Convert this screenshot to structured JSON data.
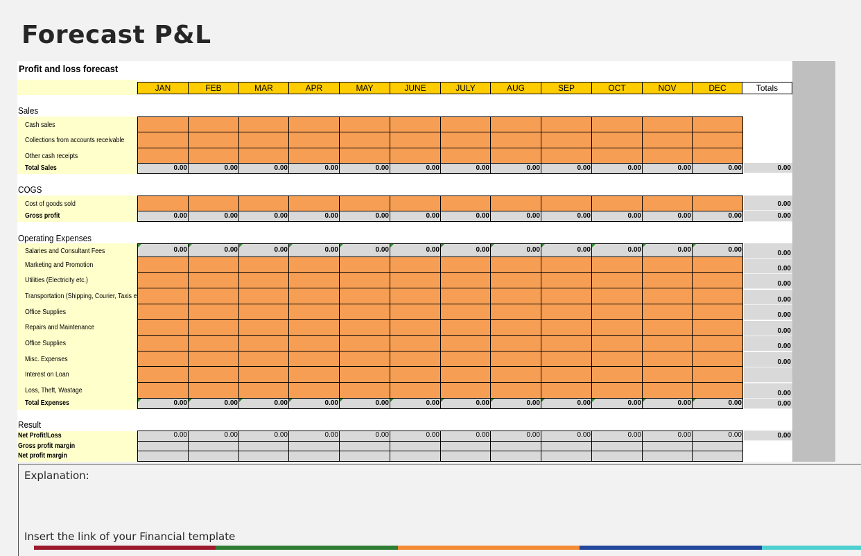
{
  "page_title": "Forecast P&L",
  "sheet": {
    "title": "Profit and loss forecast",
    "months": [
      "JAN",
      "FEB",
      "MAR",
      "APR",
      "MAY",
      "JUNE",
      "JULY",
      "AUG",
      "SEP",
      "OCT",
      "NOV",
      "DEC"
    ],
    "totals_label": "Totals",
    "sections": {
      "sales": {
        "title": "Sales",
        "items": [
          "Cash sales",
          "Collections from accounts receivable",
          "Other cash receipts"
        ],
        "total_label": "Total Sales",
        "monthly_totals": [
          "0.00",
          "0.00",
          "0.00",
          "0.00",
          "0.00",
          "0.00",
          "0.00",
          "0.00",
          "0.00",
          "0.00",
          "0.00",
          "0.00"
        ],
        "grand_total": "0.00"
      },
      "cogs": {
        "title": "COGS",
        "item": "Cost of goods sold",
        "item_total": "0.00",
        "gross_label": "Gross profit",
        "gross_monthly": [
          "0.00",
          "0.00",
          "0.00",
          "0.00",
          "0.00",
          "0.00",
          "0.00",
          "0.00",
          "0.00",
          "0.00",
          "0.00",
          "0.00"
        ],
        "gross_total": "0.00"
      },
      "opex": {
        "title": "Operating Expenses",
        "salaries_label": "Salaries and Consultant Fees",
        "salaries_monthly": [
          "0.00",
          "0.00",
          "0.00",
          "0.00",
          "0.00",
          "0.00",
          "0.00",
          "0.00",
          "0.00",
          "0.00",
          "0.00",
          "0.00"
        ],
        "items": [
          "Marketing and Promotion",
          "Utilities (Electricity etc.)",
          "Transportation (Shipping, Courier, Taxis etc.)",
          "Office Supplies",
          "Repairs and Maintenance",
          "Office Supplies",
          "Misc. Expenses",
          "Interest on Loan",
          "Loss, Theft, Wastage"
        ],
        "row_totals": [
          "0.00",
          "0.00",
          "0.00",
          "0.00",
          "0.00",
          "0.00",
          "0.00",
          "0.00",
          "",
          "0.00"
        ],
        "total_label": "Total Expenses",
        "total_monthly": [
          "0.00",
          "0.00",
          "0.00",
          "0.00",
          "0.00",
          "0.00",
          "0.00",
          "0.00",
          "0.00",
          "0.00",
          "0.00",
          "0.00"
        ],
        "grand_total": "0.00"
      },
      "result": {
        "title": "Result",
        "net_label": "Net Profit/Loss",
        "net_monthly": [
          "0.00",
          "0.00",
          "0.00",
          "0.00",
          "0.00",
          "0.00",
          "0.00",
          "0.00",
          "0.00",
          "0.00",
          "0.00",
          "0.00"
        ],
        "net_total": "0.00",
        "gross_margin_label": "Gross profit margin",
        "net_margin_label": "Net profit margin"
      }
    }
  },
  "explanation": {
    "label": "Explanation:",
    "link_text": "Insert the link of your Financial template"
  },
  "colors": {
    "month_header": "#ffcc00",
    "input_cell": "#f79e55",
    "formula_cell": "#d9d9d9",
    "label_background": "#ffffcc",
    "stripes": [
      "#9c1a2b",
      "#2e7d32",
      "#f58a34",
      "#23479a",
      "#4dd0cf"
    ]
  }
}
